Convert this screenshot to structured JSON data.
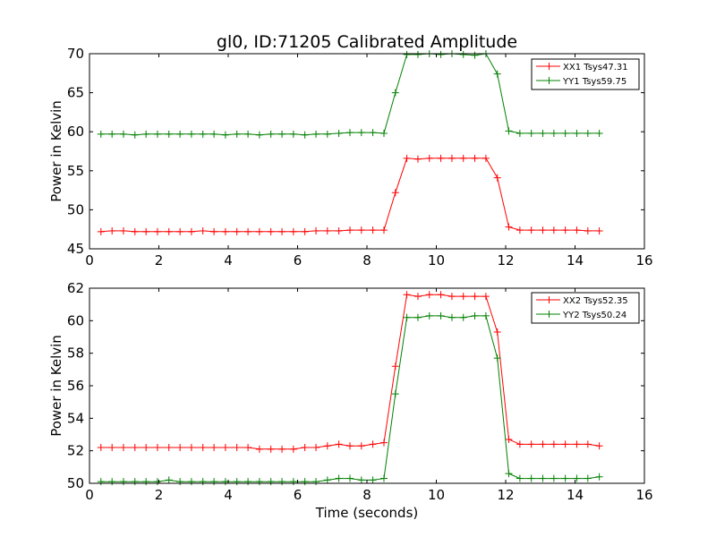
{
  "chart_data": [
    {
      "type": "line",
      "title": "gl0, ID:71205 Calibrated Amplitude",
      "xlabel": "",
      "ylabel": "Power in Kelvin",
      "xlim": [
        0,
        16
      ],
      "ylim": [
        45,
        70
      ],
      "xticks": [
        "0",
        "2",
        "4",
        "6",
        "8",
        "10",
        "12",
        "14",
        "16"
      ],
      "yticks": [
        "45",
        "50",
        "55",
        "60",
        "65",
        "70"
      ],
      "legend_position": "upper right",
      "x": [
        0.33,
        0.65,
        0.98,
        1.31,
        1.63,
        1.96,
        2.29,
        2.61,
        2.94,
        3.27,
        3.59,
        3.92,
        4.25,
        4.57,
        4.9,
        5.23,
        5.55,
        5.88,
        6.21,
        6.53,
        6.86,
        7.19,
        7.51,
        7.84,
        8.17,
        8.49,
        8.82,
        9.15,
        9.47,
        9.8,
        10.13,
        10.45,
        10.78,
        11.11,
        11.43,
        11.76,
        12.09,
        12.41,
        12.74,
        13.07,
        13.39,
        13.72,
        14.05,
        14.37,
        14.7
      ],
      "series": [
        {
          "name": "XX1 Tsys47.31",
          "color": "#ff0000",
          "values": [
            47.2,
            47.3,
            47.3,
            47.2,
            47.2,
            47.2,
            47.2,
            47.2,
            47.2,
            47.3,
            47.2,
            47.2,
            47.2,
            47.2,
            47.2,
            47.2,
            47.2,
            47.2,
            47.2,
            47.3,
            47.3,
            47.3,
            47.4,
            47.4,
            47.4,
            47.4,
            52.2,
            56.6,
            56.5,
            56.6,
            56.6,
            56.6,
            56.6,
            56.6,
            56.6,
            54.1,
            47.8,
            47.4,
            47.4,
            47.4,
            47.4,
            47.4,
            47.4,
            47.3,
            47.3
          ]
        },
        {
          "name": "YY1 Tsys59.75",
          "color": "#008000",
          "values": [
            59.7,
            59.7,
            59.7,
            59.6,
            59.7,
            59.7,
            59.7,
            59.7,
            59.7,
            59.7,
            59.7,
            59.6,
            59.7,
            59.7,
            59.6,
            59.7,
            59.7,
            59.7,
            59.6,
            59.7,
            59.7,
            59.8,
            59.9,
            59.9,
            59.9,
            59.8,
            65.0,
            69.9,
            69.9,
            70.0,
            69.9,
            70.0,
            69.9,
            69.8,
            70.0,
            67.4,
            60.1,
            59.8,
            59.8,
            59.8,
            59.8,
            59.8,
            59.8,
            59.8,
            59.8
          ]
        }
      ]
    },
    {
      "type": "line",
      "title": "",
      "xlabel": "Time (seconds)",
      "ylabel": "Power in Kelvin",
      "xlim": [
        0,
        16
      ],
      "ylim": [
        50,
        62
      ],
      "xticks": [
        "0",
        "2",
        "4",
        "6",
        "8",
        "10",
        "12",
        "14",
        "16"
      ],
      "yticks": [
        "50",
        "52",
        "54",
        "56",
        "58",
        "60",
        "62"
      ],
      "legend_position": "upper right",
      "x": [
        0.33,
        0.65,
        0.98,
        1.31,
        1.63,
        1.96,
        2.29,
        2.61,
        2.94,
        3.27,
        3.59,
        3.92,
        4.25,
        4.57,
        4.9,
        5.23,
        5.55,
        5.88,
        6.21,
        6.53,
        6.86,
        7.19,
        7.51,
        7.84,
        8.17,
        8.49,
        8.82,
        9.15,
        9.47,
        9.8,
        10.13,
        10.45,
        10.78,
        11.11,
        11.43,
        11.76,
        12.09,
        12.41,
        12.74,
        13.07,
        13.39,
        13.72,
        14.05,
        14.37,
        14.7
      ],
      "series": [
        {
          "name": "XX2 Tsys52.35",
          "color": "#ff0000",
          "values": [
            52.2,
            52.2,
            52.2,
            52.2,
            52.2,
            52.2,
            52.2,
            52.2,
            52.2,
            52.2,
            52.2,
            52.2,
            52.2,
            52.2,
            52.1,
            52.1,
            52.1,
            52.1,
            52.2,
            52.2,
            52.3,
            52.4,
            52.3,
            52.3,
            52.4,
            52.5,
            57.2,
            61.6,
            61.5,
            61.6,
            61.6,
            61.5,
            61.5,
            61.5,
            61.5,
            59.3,
            52.7,
            52.4,
            52.4,
            52.4,
            52.4,
            52.4,
            52.4,
            52.4,
            52.3
          ]
        },
        {
          "name": "YY2 Tsys50.24",
          "color": "#008000",
          "values": [
            50.1,
            50.1,
            50.1,
            50.1,
            50.1,
            50.1,
            50.2,
            50.1,
            50.1,
            50.1,
            50.1,
            50.1,
            50.1,
            50.1,
            50.1,
            50.1,
            50.1,
            50.1,
            50.1,
            50.1,
            50.2,
            50.3,
            50.3,
            50.2,
            50.2,
            50.3,
            55.5,
            60.2,
            60.2,
            60.3,
            60.3,
            60.2,
            60.2,
            60.3,
            60.3,
            57.7,
            50.6,
            50.3,
            50.3,
            50.3,
            50.3,
            50.3,
            50.3,
            50.3,
            50.4
          ]
        }
      ]
    }
  ]
}
